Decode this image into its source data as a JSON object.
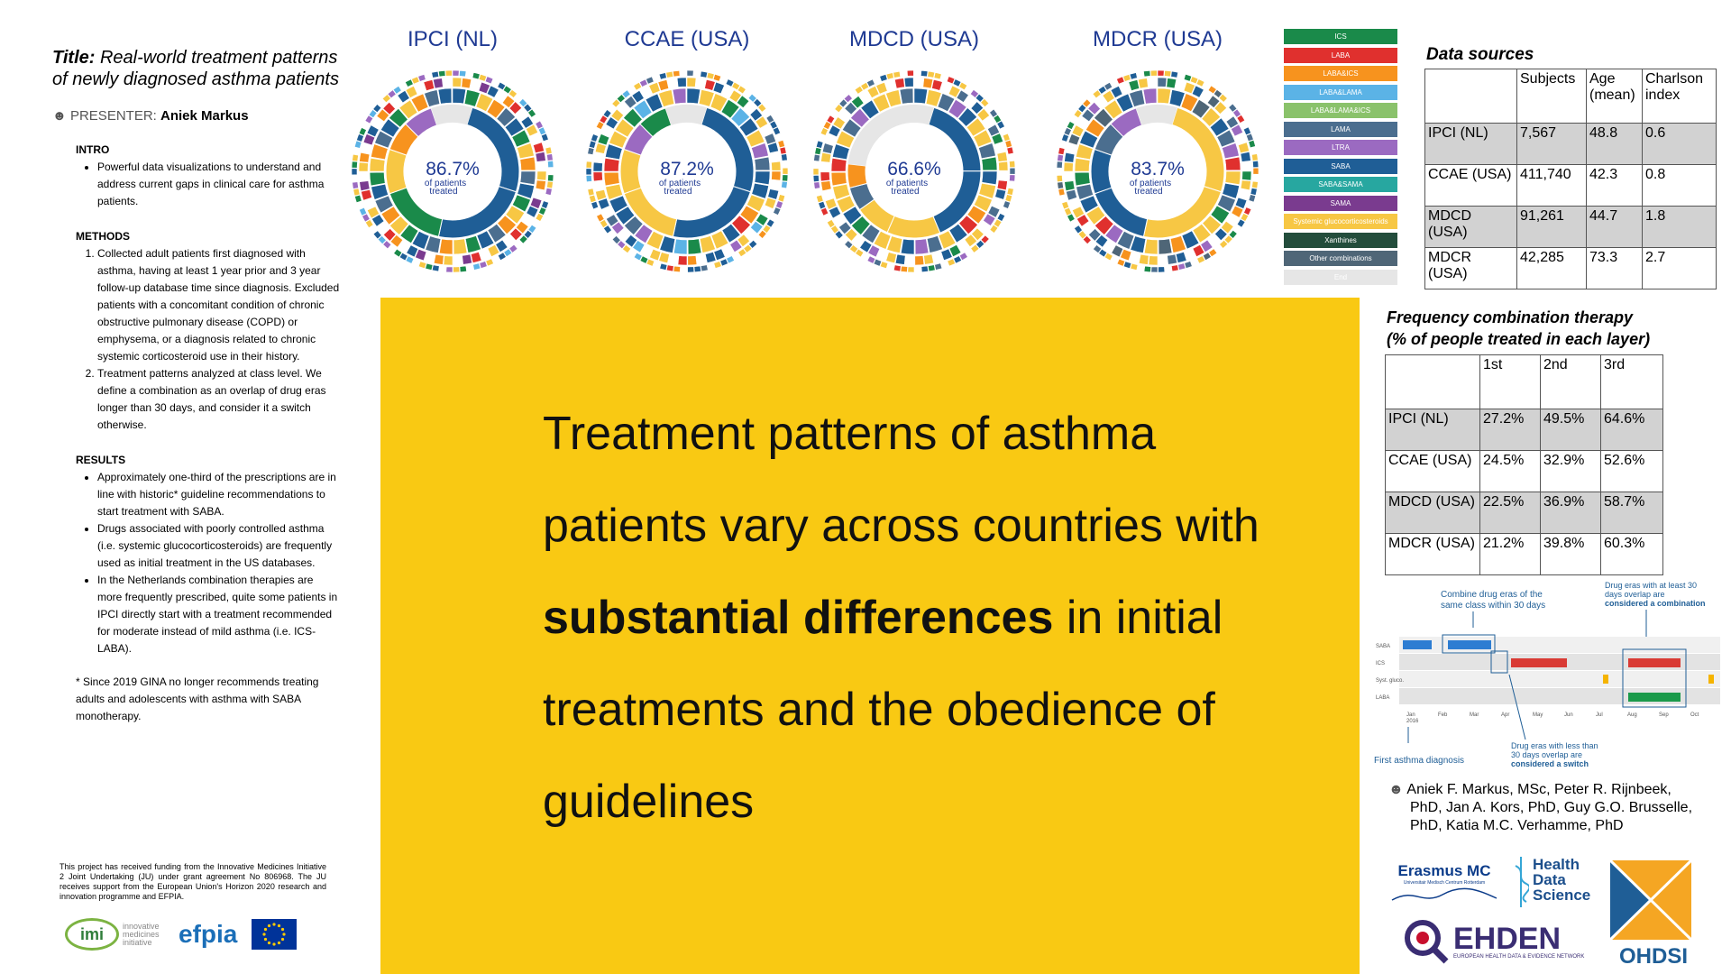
{
  "left": {
    "title_label": "Title:",
    "title_text": "Real-world treatment patterns of newly diagnosed asthma patients",
    "presenter_label": "PRESENTER:",
    "presenter_name": "Aniek Markus",
    "intro_heading": "INTRO",
    "intro_items": [
      "Powerful data visualizations to understand and address current gaps in clinical care for asthma patients."
    ],
    "methods_heading": "METHODS",
    "methods_items": [
      "Collected adult patients first diagnosed with asthma, having at least 1 year prior and 3 year follow-up database time since diagnosis. Excluded patients with a concomitant condition of chronic obstructive pulmonary disease (COPD) or emphysema, or a diagnosis related to chronic systemic corticosteroid use in their history.",
      "Treatment patterns analyzed at class level. We define a combination as an overlap of drug eras longer than 30 days, and consider it a switch otherwise."
    ],
    "results_heading": "RESULTS",
    "results_items": [
      "Approximately one-third of the prescriptions are in line with historic* guideline recommendations to start treatment with SABA.",
      "Drugs associated with poorly controlled asthma (i.e. systemic glucocorticosteroids) are frequently used as initial treatment in the US databases.",
      "In the Netherlands combination therapies are more frequently prescribed, quite some patients in IPCI directly start with a treatment recommended for moderate instead of mild asthma (i.e. ICS-LABA)."
    ],
    "footnote": "* Since 2019 GINA no longer recommends treating adults and adolescents with asthma with SABA monotherapy.",
    "funding": "This project has received funding from the Innovative Medicines Initiative 2 Joint Undertaking (JU) under grant agreement No 806968. The JU receives support from the European Union's Horizon 2020 research and innovation programme and EFPIA.",
    "logo_imi": "imi",
    "logo_imi_sub": "innovative medicines initiative",
    "logo_efpia": "efpia"
  },
  "sunbursts": [
    {
      "db": "IPCI (NL)",
      "pct": "86.7%",
      "sub1": "of patients",
      "sub2": "treated"
    },
    {
      "db": "CCAE (USA)",
      "pct": "87.2%",
      "sub1": "of patients",
      "sub2": "treated"
    },
    {
      "db": "MDCD (USA)",
      "pct": "66.6%",
      "sub1": "of patients",
      "sub2": "treated"
    },
    {
      "db": "MDCR (USA)",
      "pct": "83.7%",
      "sub1": "of patients",
      "sub2": "treated"
    }
  ],
  "legend": [
    {
      "label": "ICS",
      "color": "#1a8a4a"
    },
    {
      "label": "LABA",
      "color": "#e0302e"
    },
    {
      "label": "LABA&ICS",
      "color": "#f7931e"
    },
    {
      "label": "LABA&LAMA",
      "color": "#5bb3e6"
    },
    {
      "label": "LABA&LAMA&ICS",
      "color": "#8ac26b"
    },
    {
      "label": "LAMA",
      "color": "#4b6e8f"
    },
    {
      "label": "LTRA",
      "color": "#9b6ac1"
    },
    {
      "label": "SABA",
      "color": "#1f5e96"
    },
    {
      "label": "SABA&SAMA",
      "color": "#27a7a0"
    },
    {
      "label": "SAMA",
      "color": "#7a3b8f"
    },
    {
      "label": "Systemic glucocorticosteroids",
      "color": "#f7c744"
    },
    {
      "label": "Xanthines",
      "color": "#234d3c"
    },
    {
      "label": "Other combinations",
      "color": "#4f6677"
    },
    {
      "label": "End",
      "color": "#e6e6e6"
    }
  ],
  "data_sources": {
    "title": "Data sources",
    "headers": [
      "",
      "Subjects",
      "Age (mean)",
      "Charlson index"
    ],
    "rows": [
      [
        "IPCI (NL)",
        "7,567",
        "48.8",
        "0.6"
      ],
      [
        "CCAE (USA)",
        "411,740",
        "42.3",
        "0.8"
      ],
      [
        "MDCD (USA)",
        "91,261",
        "44.7",
        "1.8"
      ],
      [
        "MDCR (USA)",
        "42,285",
        "73.3",
        "2.7"
      ]
    ]
  },
  "frequency": {
    "title_line1": "Frequency combination therapy",
    "title_line2": "(% of people treated in each layer)",
    "headers": [
      "",
      "1st",
      "2nd",
      "3rd"
    ],
    "rows": [
      [
        "IPCI (NL)",
        "27.2%",
        "49.5%",
        "64.6%"
      ],
      [
        "CCAE (USA)",
        "24.5%",
        "32.9%",
        "52.6%"
      ],
      [
        "MDCD (USA)",
        "22.5%",
        "36.9%",
        "58.7%"
      ],
      [
        "MDCR (USA)",
        "21.2%",
        "39.8%",
        "60.3%"
      ]
    ]
  },
  "banner": {
    "text_before": "Treatment patterns of asthma patients vary across countries with ",
    "text_bold": "substantial differences",
    "text_after": " in initial treatments and the obedience of guidelines"
  },
  "diagram": {
    "note_combine": [
      "Combine drug eras of the",
      "same class within 30 days"
    ],
    "note_combination": [
      "Drug eras with at least 30",
      "days overlap are",
      "considered a combination"
    ],
    "note_switch": [
      "Drug eras with less than",
      "30 days overlap are",
      "considered a switch"
    ],
    "first_diagnosis": "First asthma diagnosis",
    "rows": [
      "SABA",
      "ICS",
      "Syst. gluco.",
      "LABA"
    ],
    "months": [
      "Jan",
      "Feb",
      "Mar",
      "Apr",
      "May",
      "Jun",
      "Jul",
      "Aug",
      "Sep",
      "Oct"
    ],
    "year": "2016"
  },
  "authors": {
    "line1": "Aniek F. Markus, MSc, Peter R. Rijnbeek,",
    "line2": "PhD, Jan A. Kors, PhD, Guy G.O. Brusselle,",
    "line3": "PhD, Katia M.C. Verhamme, PhD"
  },
  "logos": {
    "erasmus": "Erasmus MC",
    "erasmus_sub": "Universitair Medisch Centrum Rotterdam",
    "hds1": "Health",
    "hds2": "Data",
    "hds3": "Science",
    "ehden": "EHDEN",
    "ehden_sub": "EUROPEAN HEALTH DATA & EVIDENCE NETWORK",
    "ohdsi": "OHDSI"
  }
}
